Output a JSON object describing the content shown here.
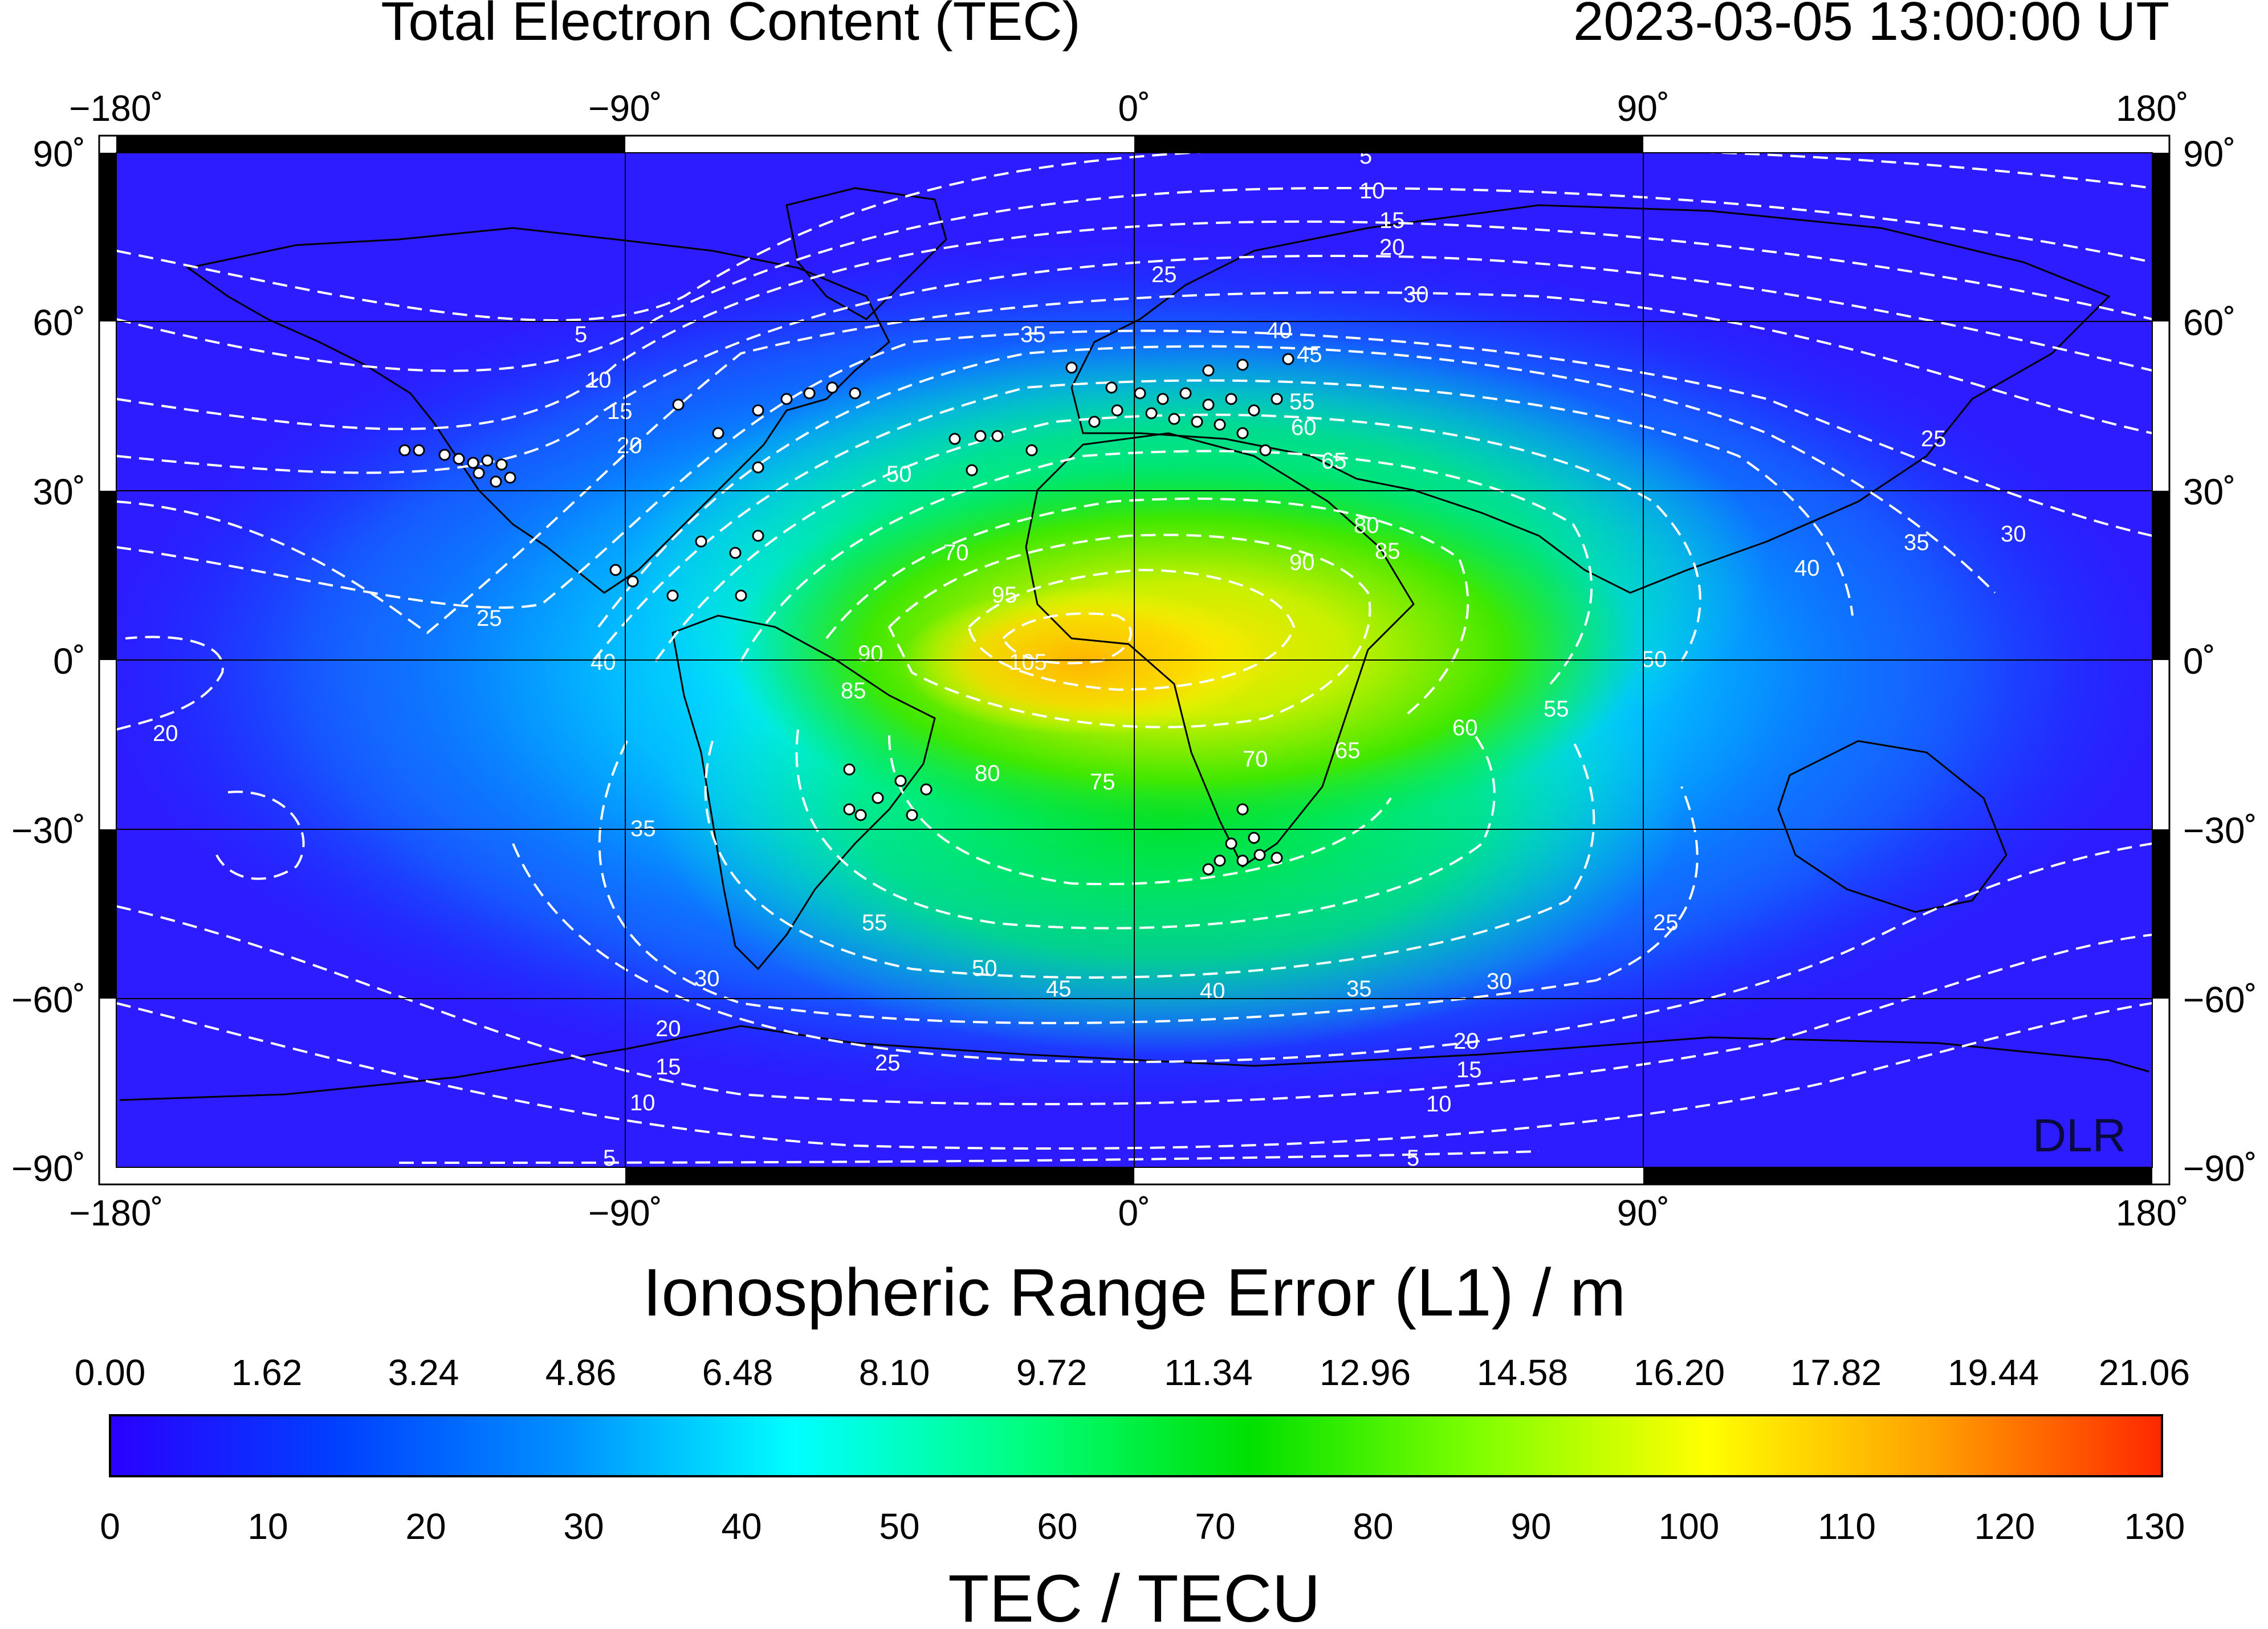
{
  "header": {
    "title": "Total Electron Content (TEC)",
    "timestamp": "2023-03-05  13:00:00 UT"
  },
  "map": {
    "lon_ticks": [
      "−180˚",
      "−90˚",
      "0˚",
      "90˚",
      "180˚"
    ],
    "lat_ticks": [
      "90˚",
      "60˚",
      "30˚",
      "0˚",
      "−30˚",
      "−60˚",
      "−90˚"
    ],
    "watermark": "DLR",
    "contour_levels": [
      "5",
      "10",
      "15",
      "20",
      "25",
      "30",
      "35",
      "40",
      "45",
      "50",
      "55",
      "60",
      "65",
      "70",
      "75",
      "80",
      "85",
      "90",
      "95",
      "105"
    ],
    "colors": {
      "contour": "#ffffff",
      "coast": "#000000",
      "station_fill": "#ffffff"
    }
  },
  "colorbar": {
    "range_error_title": "Ionospheric Range Error (L1) / m",
    "range_error_ticks": [
      "0.00",
      "1.62",
      "3.24",
      "4.86",
      "6.48",
      "8.10",
      "9.72",
      "11.34",
      "12.96",
      "14.58",
      "16.20",
      "17.82",
      "19.44",
      "21.06"
    ],
    "tec_ticks": [
      "0",
      "10",
      "20",
      "30",
      "40",
      "50",
      "60",
      "70",
      "80",
      "90",
      "100",
      "110",
      "120",
      "130"
    ],
    "tec_title": "TEC / TECU",
    "stops": [
      "#2a00ff",
      "#0040ff",
      "#0090ff",
      "#00ffff",
      "#00ff80",
      "#00e000",
      "#80ff00",
      "#ffff00",
      "#ffa000",
      "#ff2800"
    ]
  }
}
